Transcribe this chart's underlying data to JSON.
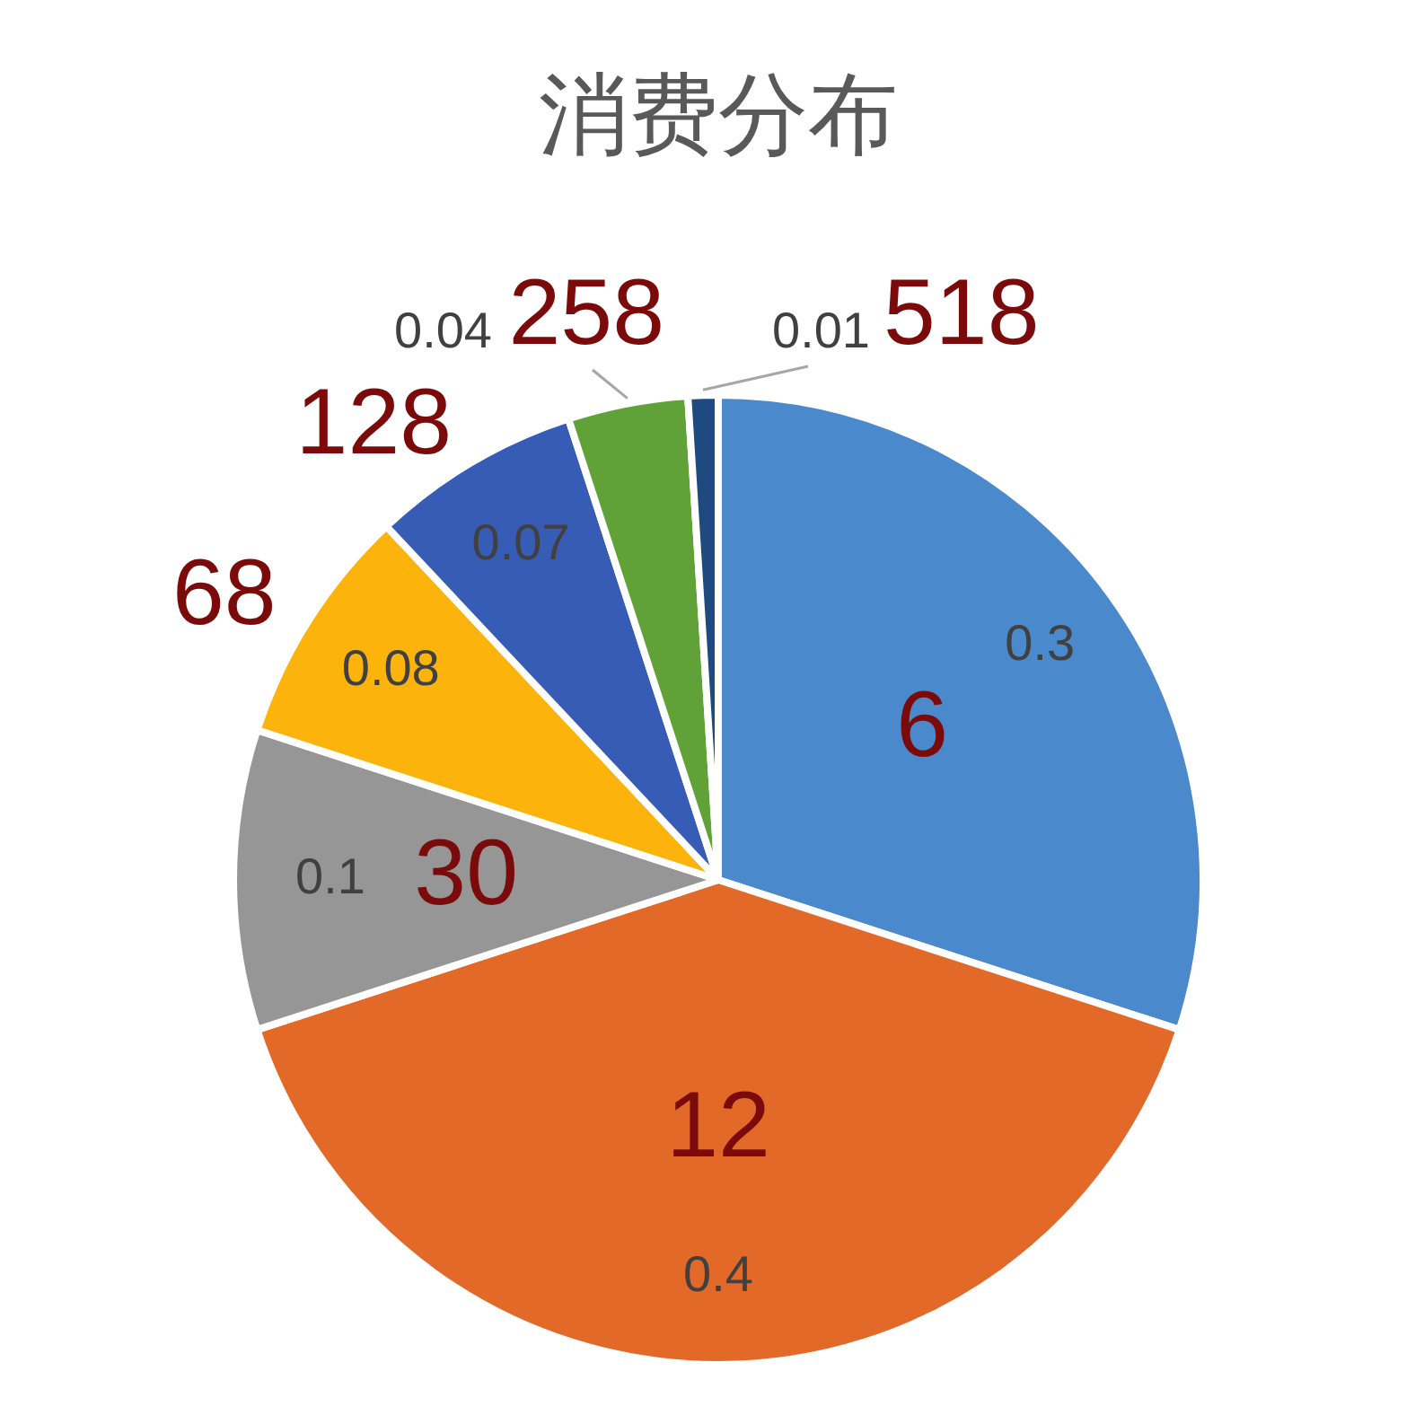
{
  "chart_data": {
    "type": "pie",
    "title": "消费分布",
    "categories": [
      "6",
      "12",
      "30",
      "68",
      "128",
      "258",
      "518"
    ],
    "values": [
      0.3,
      0.4,
      0.1,
      0.08,
      0.07,
      0.04,
      0.01
    ],
    "colors": [
      "#4a89cb",
      "#e36928",
      "#969696",
      "#fcb40d",
      "#375cb6",
      "#60a238",
      "#1f4a80"
    ],
    "data_labels": true
  }
}
